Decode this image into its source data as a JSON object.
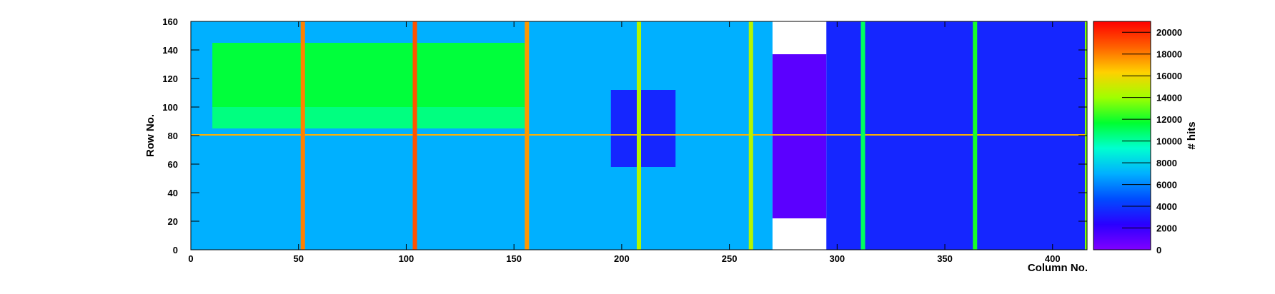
{
  "chart_data": {
    "type": "heatmap",
    "title": "",
    "xlabel": "Column No.",
    "ylabel": "Row No.",
    "zlabel": "# hits",
    "xlim": [
      0,
      416
    ],
    "ylim": [
      0,
      160
    ],
    "zlim": [
      0,
      21000
    ],
    "x_ticks": [
      0,
      50,
      100,
      150,
      200,
      250,
      300,
      350,
      400
    ],
    "y_ticks": [
      0,
      20,
      40,
      60,
      80,
      100,
      120,
      140,
      160
    ],
    "z_ticks": [
      0,
      2000,
      4000,
      6000,
      8000,
      10000,
      12000,
      14000,
      16000,
      18000,
      20000
    ],
    "x_tick_labels": [
      "0",
      "50",
      "100",
      "150",
      "200",
      "250",
      "300",
      "350",
      "400"
    ],
    "y_tick_labels": [
      "0",
      "20",
      "40",
      "60",
      "80",
      "100",
      "120",
      "140",
      "160"
    ],
    "z_tick_labels": [
      "0",
      "2000",
      "4000",
      "6000",
      "8000",
      "10000",
      "12000",
      "14000",
      "16000",
      "18000",
      "20000"
    ],
    "colormap": [
      "#8000ff",
      "#2a00ff",
      "#004cff",
      "#00b0ff",
      "#00ffd0",
      "#00ff30",
      "#a0ff00",
      "#ffd000",
      "#ff6000",
      "#ff0000"
    ],
    "approx_regions": [
      {
        "name": "background left",
        "x": [
          0,
          270
        ],
        "y": [
          0,
          160
        ],
        "hits": 7000
      },
      {
        "name": "upper left block",
        "x": [
          10,
          155
        ],
        "y": [
          100,
          145
        ],
        "hits": 11500
      },
      {
        "name": "mid left block",
        "x": [
          10,
          155
        ],
        "y": [
          85,
          100
        ],
        "hits": 10500
      },
      {
        "name": "center structure",
        "x": [
          195,
          225
        ],
        "y": [
          58,
          112
        ],
        "hits": 3500
      },
      {
        "name": "purple dense region",
        "x": [
          270,
          295
        ],
        "y": [
          22,
          137
        ],
        "hits": 1000
      },
      {
        "name": "right region",
        "x": [
          295,
          416
        ],
        "y": [
          0,
          160
        ],
        "hits": 3500
      }
    ],
    "hot_columns": [
      {
        "x": 52,
        "hits": 18000
      },
      {
        "x": 104,
        "hits": 19000
      },
      {
        "x": 156,
        "hits": 17500
      },
      {
        "x": 208,
        "hits": 14500
      },
      {
        "x": 260,
        "hits": 14500
      },
      {
        "x": 312,
        "hits": 11000
      },
      {
        "x": 364,
        "hits": 12000
      },
      {
        "x": 416,
        "hits": 13500
      }
    ],
    "hot_rows": [
      {
        "y": 80,
        "hits": 17000
      }
    ]
  }
}
